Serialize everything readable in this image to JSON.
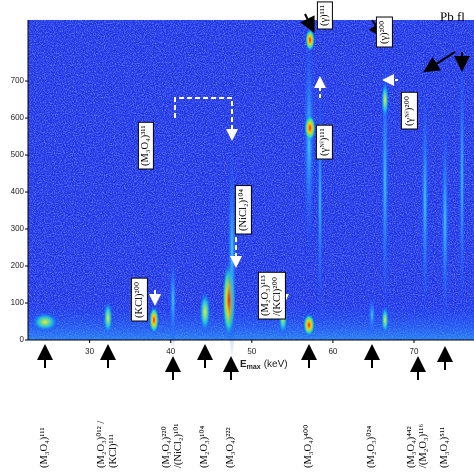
{
  "chart_data": {
    "type": "heatmap",
    "xlabel": {
      "main": "E",
      "sub": "max",
      "unit": "(keV)"
    },
    "xlim": [
      22.4,
      77.4
    ],
    "xticks": [
      30,
      40,
      50,
      60,
      70
    ],
    "ylim": [
      0,
      865
    ],
    "yticks": [
      0,
      100,
      200,
      300,
      400,
      500,
      600,
      700
    ],
    "bottom_labels": [
      [
        "(M₃O₄)¹¹¹"
      ],
      [
        "(M₂O₃)⁰¹² /",
        "(KCl)¹¹¹"
      ],
      [
        "(M₃O₄)²²⁰",
        "/(NiCl₂)¹⁰¹"
      ],
      [
        "(M₂O₃)¹⁰⁴"
      ],
      [
        "(M₃O₄)²²²"
      ],
      [
        "(M₃O₄)⁴⁰⁰"
      ],
      [
        "(M₂O₃)⁰²⁴"
      ],
      [
        "(M₃O₄)⁴⁴²",
        "/(M₂O₃)¹¹⁶"
      ],
      [
        "(M₃O₄)⁵¹¹"
      ]
    ],
    "plot_labels": [
      [
        "(KCl)²⁰⁰"
      ],
      [
        "(M₃O₄)³¹¹"
      ],
      [
        "(NiCl₂)¹⁰⁴"
      ],
      [
        "(M₂O₃)¹¹³",
        "/(KCl)²⁰⁰"
      ],
      [
        "(γ)¹¹¹"
      ],
      [
        "(γᴺⁱ)¹¹¹"
      ],
      [
        "(γ)²⁰⁰"
      ],
      [
        "(γᴺⁱ)²⁰⁰"
      ]
    ],
    "corner_label": "Pb fl"
  }
}
